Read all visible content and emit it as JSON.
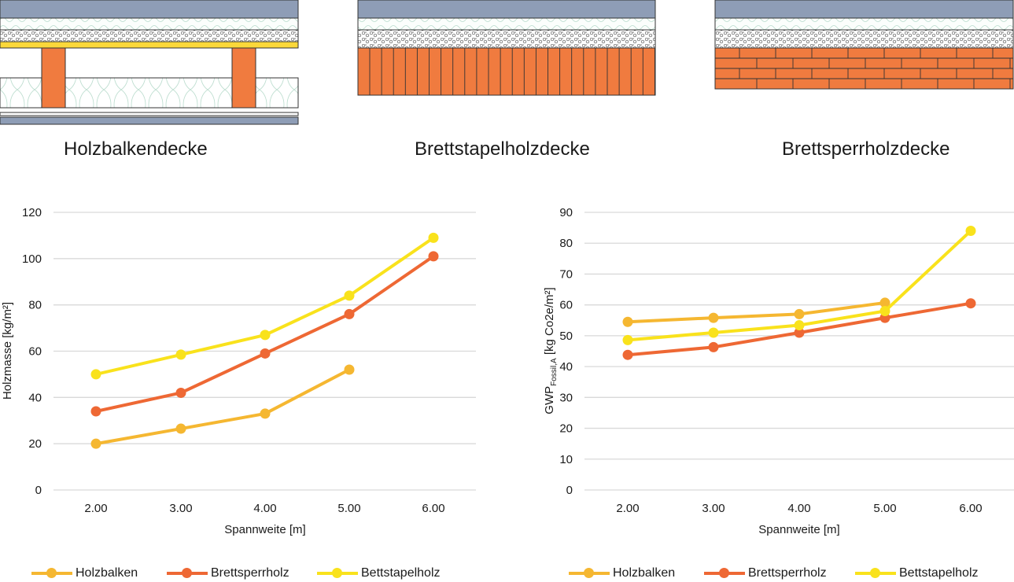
{
  "diagrams": {
    "titles": [
      "Holzbalkendecke",
      "Brettstapelholzdecke",
      "Brettsperrholzdecke"
    ]
  },
  "colors": {
    "Holzbalken": "#f5b731",
    "Brettsperrholz": "#ee6834",
    "Bettstapelholz": "#f9e21c",
    "wood": "#f07b3f",
    "slab": "#8e9db6",
    "grid": "#d9d9d9"
  },
  "chart_data": [
    {
      "type": "line",
      "categories": [
        "2.00",
        "3.00",
        "4.00",
        "5.00",
        "6.00"
      ],
      "xlabel": "Spannweite [m]",
      "ylabel": "Holzmasse [kg/m²]",
      "ylim": [
        0,
        120
      ],
      "yticks": [
        0,
        20,
        40,
        60,
        80,
        100,
        120
      ],
      "grid": true,
      "legend": "bottom",
      "series": [
        {
          "name": "Holzbalken",
          "values": [
            20,
            26.5,
            33,
            52,
            null
          ]
        },
        {
          "name": "Brettsperrholz",
          "values": [
            34,
            42,
            59,
            76,
            101
          ]
        },
        {
          "name": "Bettstapelholz",
          "values": [
            50,
            58.5,
            67,
            84,
            109
          ]
        }
      ]
    },
    {
      "type": "line",
      "categories": [
        "2.00",
        "3.00",
        "4.00",
        "5.00",
        "6.00"
      ],
      "xlabel": "Spannweite [m]",
      "ylabel": "GWP",
      "ylabel_sub": "Fossil,A",
      "ylabel_suffix": " [kg Co2e/m²]",
      "ylim": [
        0,
        90
      ],
      "yticks": [
        0,
        10,
        20,
        30,
        40,
        50,
        60,
        70,
        80,
        90
      ],
      "grid": true,
      "legend": "bottom",
      "series": [
        {
          "name": "Holzbalken",
          "values": [
            54.5,
            55.8,
            57,
            60.7,
            null
          ]
        },
        {
          "name": "Brettsperrholz",
          "values": [
            43.8,
            46.3,
            51,
            55.8,
            60.5
          ]
        },
        {
          "name": "Bettstapelholz",
          "values": [
            48.6,
            51,
            53.4,
            58,
            84
          ]
        }
      ]
    }
  ]
}
